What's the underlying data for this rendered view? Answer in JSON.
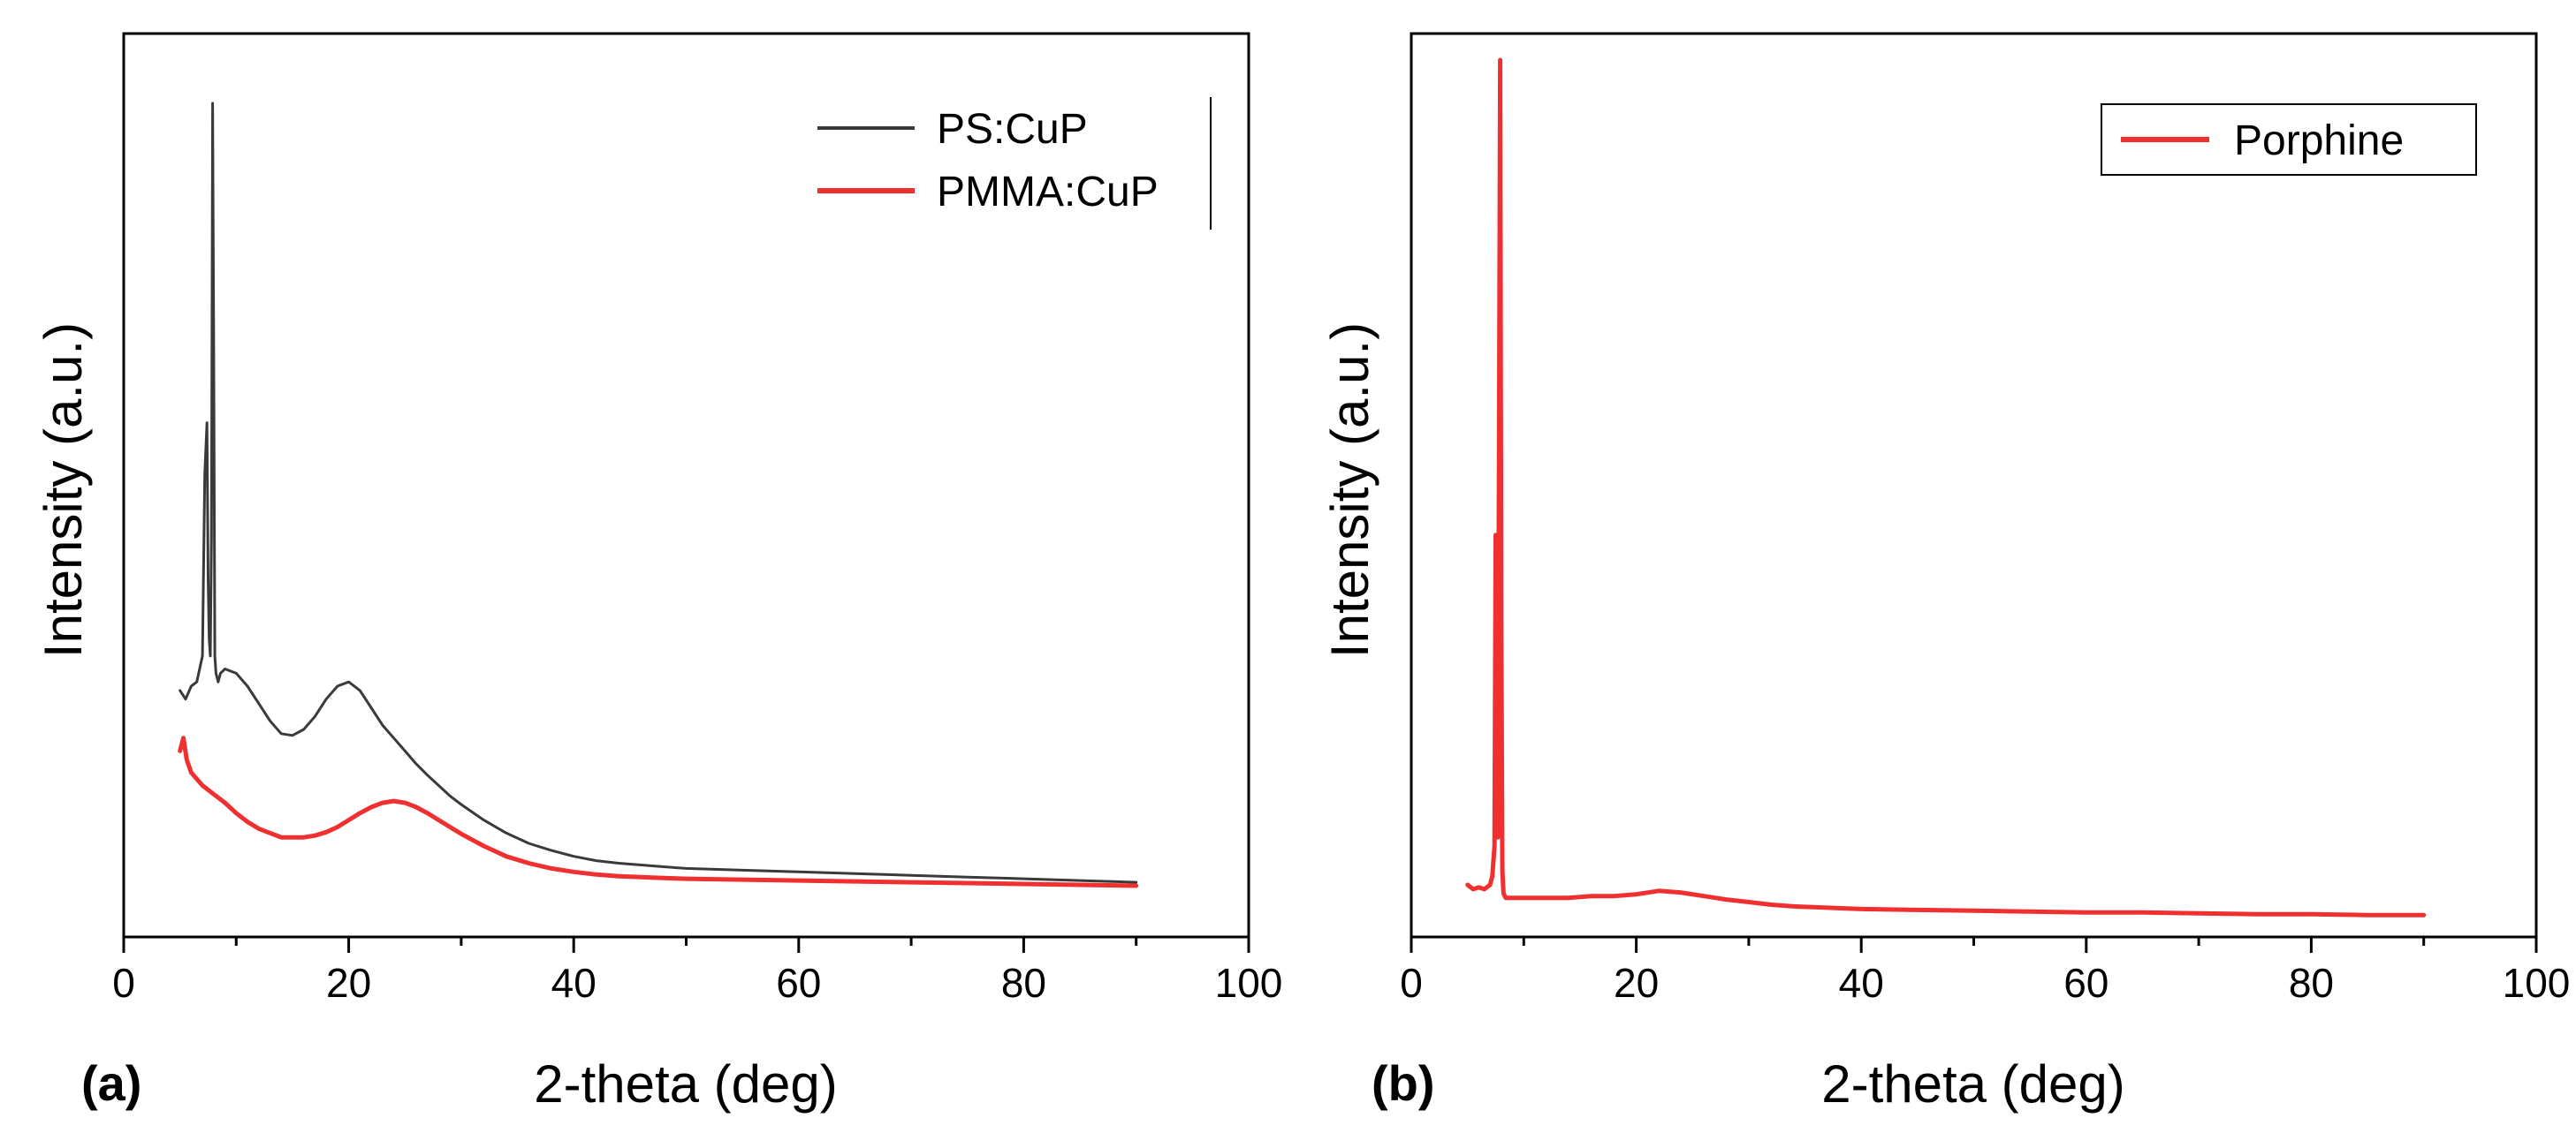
{
  "chart_data": [
    {
      "type": "line",
      "panel_label": "(a)",
      "xlabel": "2-theta (deg)",
      "ylabel": "Intensity (a.u.)",
      "xlim": [
        0,
        100
      ],
      "ylim": [
        0,
        1.0
      ],
      "y_ticks_shown": false,
      "x_ticks": [
        "0",
        "20",
        "40",
        "60",
        "80",
        "100"
      ],
      "x_tick_values": [
        0,
        20,
        40,
        60,
        80,
        100
      ],
      "grid": false,
      "legend_position": "top-right",
      "series": [
        {
          "name": "PS:CuP",
          "color": "#3a3a3a",
          "x": [
            5,
            5.5,
            6,
            6.5,
            7,
            7.2,
            7.4,
            7.5,
            7.6,
            7.7,
            7.8,
            7.9,
            8.0,
            8.1,
            8.2,
            8.4,
            8.6,
            9,
            10,
            11,
            12,
            13,
            14,
            15,
            16,
            17,
            18,
            19,
            20,
            21,
            22,
            23,
            24,
            25,
            26,
            27,
            28,
            29,
            30,
            32,
            34,
            36,
            38,
            40,
            42,
            44,
            46,
            48,
            50,
            55,
            60,
            65,
            70,
            75,
            80,
            85,
            90
          ],
          "y": [
            0.27,
            0.26,
            0.275,
            0.28,
            0.31,
            0.52,
            0.58,
            0.4,
            0.33,
            0.31,
            0.45,
            0.95,
            0.68,
            0.31,
            0.29,
            0.28,
            0.29,
            0.295,
            0.29,
            0.275,
            0.255,
            0.235,
            0.22,
            0.218,
            0.225,
            0.24,
            0.26,
            0.275,
            0.28,
            0.27,
            0.25,
            0.23,
            0.215,
            0.2,
            0.185,
            0.172,
            0.16,
            0.148,
            0.138,
            0.12,
            0.105,
            0.093,
            0.085,
            0.078,
            0.073,
            0.07,
            0.068,
            0.066,
            0.064,
            0.062,
            0.06,
            0.058,
            0.056,
            0.054,
            0.052,
            0.05,
            0.048
          ]
        },
        {
          "name": "PMMA:CuP",
          "color": "#f03030",
          "x": [
            5,
            5.3,
            5.6,
            6,
            7,
            8,
            9,
            10,
            11,
            12,
            13,
            14,
            15,
            16,
            17,
            18,
            19,
            20,
            21,
            22,
            23,
            24,
            25,
            26,
            27,
            28,
            29,
            30,
            32,
            34,
            36,
            38,
            40,
            42,
            44,
            46,
            48,
            50,
            55,
            60,
            65,
            70,
            75,
            80,
            85,
            90
          ],
          "y": [
            0.2,
            0.215,
            0.19,
            0.175,
            0.16,
            0.15,
            0.14,
            0.128,
            0.118,
            0.11,
            0.105,
            0.1,
            0.1,
            0.1,
            0.102,
            0.106,
            0.112,
            0.12,
            0.128,
            0.135,
            0.14,
            0.142,
            0.14,
            0.135,
            0.128,
            0.12,
            0.112,
            0.104,
            0.09,
            0.078,
            0.07,
            0.064,
            0.06,
            0.057,
            0.055,
            0.054,
            0.053,
            0.052,
            0.051,
            0.05,
            0.049,
            0.048,
            0.047,
            0.046,
            0.045,
            0.044
          ]
        }
      ]
    },
    {
      "type": "line",
      "panel_label": "(b)",
      "xlabel": "2-theta (deg)",
      "ylabel": "Intensity (a.u.)",
      "xlim": [
        0,
        100
      ],
      "ylim": [
        0,
        1.0
      ],
      "y_ticks_shown": false,
      "x_ticks": [
        "0",
        "20",
        "40",
        "60",
        "80",
        "100"
      ],
      "x_tick_values": [
        0,
        20,
        40,
        60,
        80,
        100
      ],
      "grid": false,
      "legend_position": "top-right",
      "series": [
        {
          "name": "Porphine",
          "color": "#f03030",
          "x": [
            5,
            5.5,
            6,
            6.5,
            7,
            7.2,
            7.4,
            7.5,
            7.6,
            7.7,
            7.8,
            7.9,
            8.0,
            8.1,
            8.2,
            8.4,
            8.7,
            9,
            10,
            12,
            14,
            16,
            18,
            20,
            22,
            24,
            26,
            28,
            30,
            32,
            34,
            36,
            38,
            40,
            45,
            50,
            55,
            60,
            65,
            70,
            75,
            80,
            85,
            90
          ],
          "y": [
            0.045,
            0.04,
            0.042,
            0.04,
            0.045,
            0.055,
            0.09,
            0.45,
            0.25,
            0.1,
            0.55,
            1.0,
            0.35,
            0.06,
            0.035,
            0.03,
            0.03,
            0.03,
            0.03,
            0.03,
            0.03,
            0.032,
            0.032,
            0.034,
            0.038,
            0.036,
            0.032,
            0.028,
            0.025,
            0.022,
            0.02,
            0.019,
            0.018,
            0.017,
            0.016,
            0.015,
            0.014,
            0.013,
            0.013,
            0.012,
            0.011,
            0.011,
            0.01,
            0.01
          ]
        }
      ]
    }
  ]
}
